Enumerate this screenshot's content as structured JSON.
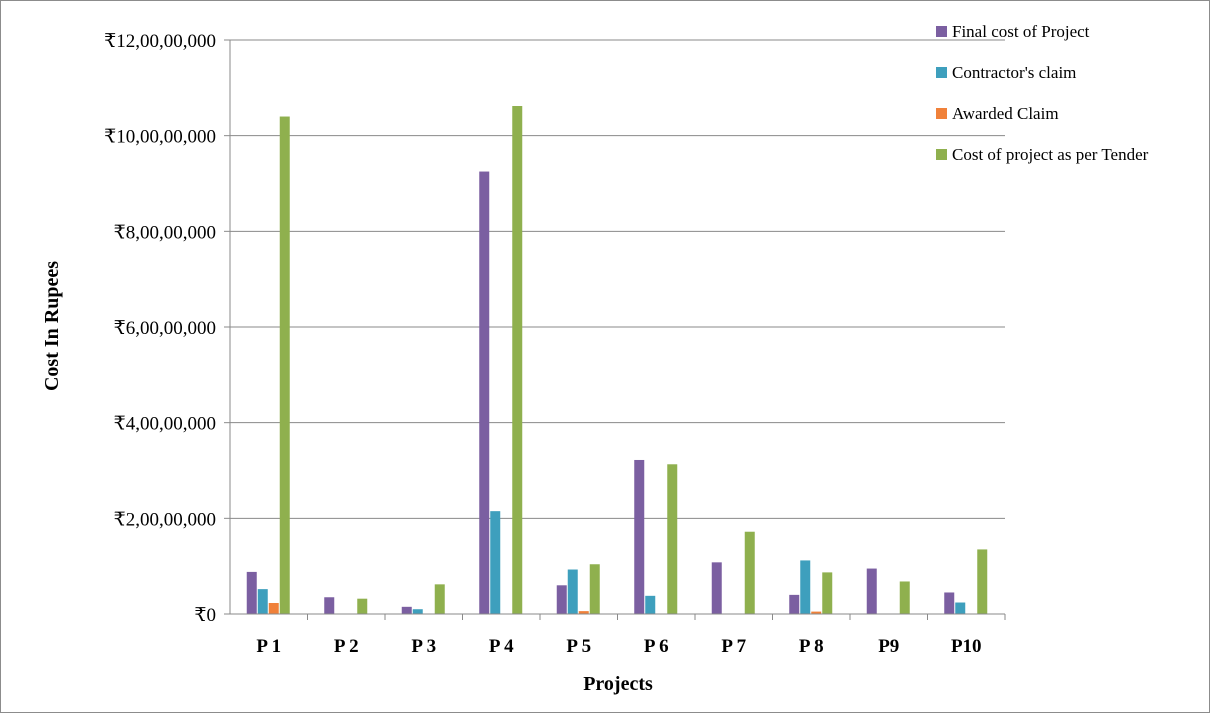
{
  "chart_data": {
    "type": "bar",
    "title": "",
    "xlabel": "Projects",
    "ylabel": "Cost In Rupees",
    "categories": [
      "P 1",
      "P 2",
      "P 3",
      "P 4",
      "P 5",
      "P 6",
      "P 7",
      "P 8",
      "P9",
      "P10"
    ],
    "ylim": [
      0,
      120000000
    ],
    "yticks": [
      0,
      20000000,
      40000000,
      60000000,
      80000000,
      100000000,
      120000000
    ],
    "ytick_labels": [
      "₹0",
      "₹2,00,00,000",
      "₹4,00,00,000",
      "₹6,00,00,000",
      "₹8,00,00,000",
      "₹10,00,00,000",
      "₹12,00,00,000"
    ],
    "grid": true,
    "legend_position": "top-right",
    "series": [
      {
        "name": "Final cost of Project",
        "color": "#7b5fa1",
        "values": [
          8800000,
          3500000,
          1500000,
          92500000,
          6000000,
          32200000,
          10800000,
          4000000,
          9500000,
          4500000
        ]
      },
      {
        "name": "Contractor's claim",
        "color": "#3e9fbd",
        "values": [
          5200000,
          0,
          1000000,
          21500000,
          9300000,
          3800000,
          0,
          11200000,
          0,
          2400000
        ]
      },
      {
        "name": "Awarded Claim",
        "color": "#f0813a",
        "values": [
          2300000,
          0,
          0,
          0,
          600000,
          0,
          0,
          500000,
          0,
          0
        ]
      },
      {
        "name": "Cost of project as per Tender",
        "color": "#8fb04e",
        "values": [
          104000000,
          3200000,
          6200000,
          106200000,
          10400000,
          31300000,
          17200000,
          8700000,
          6800000,
          13500000
        ]
      }
    ]
  }
}
